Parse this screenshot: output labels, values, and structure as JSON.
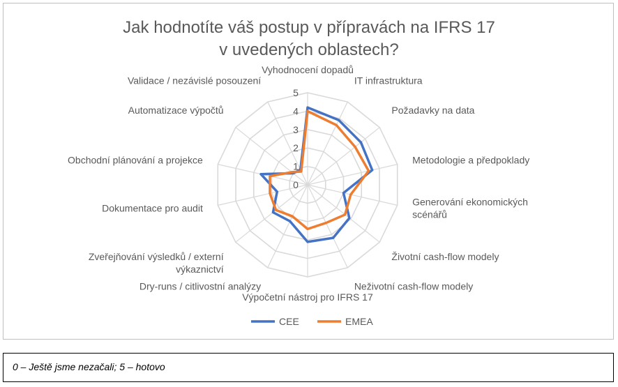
{
  "chart_data": {
    "type": "radar",
    "title_lines": [
      "Jak hodnotíte váš postup v přípravách na IFRS 17",
      "v uvedených oblastech?"
    ],
    "categories": [
      "Vyhodnocení dopadů",
      "IT infrastruktura",
      "Požadavky na data",
      "Metodologie a předpoklady",
      "Generování ekonomických scénářů",
      "Životní cash-flow modely",
      "Neživotní cash-flow modely",
      "Výpočetní nástroj pro IFRS 17",
      "Dry-runs / citlivostní analýzy",
      "Zveřejňování výsledků / externí výkaznictví",
      "Dokumentace pro audit",
      "Obchodní plánování a projekce",
      "Automatizace výpočtů",
      "Validace / nezávislé posouzení"
    ],
    "category_label_lines": [
      [
        "Vyhodnocení dopadů"
      ],
      [
        "IT infrastruktura"
      ],
      [
        "Požadavky na data"
      ],
      [
        "Metodologie a předpoklady"
      ],
      [
        "Generování ekonomických",
        "scénářů"
      ],
      [
        "Životní cash-flow modely"
      ],
      [
        "Neživotní cash-flow modely"
      ],
      [
        "Výpočetní nástroj pro IFRS 17"
      ],
      [
        "Dry-runs / citlivostní analýzy"
      ],
      [
        "Zveřejňování výsledků / externí",
        "výkaznictví"
      ],
      [
        "Dokumentace pro audit"
      ],
      [
        "Obchodní plánování a projekce"
      ],
      [
        "Automatizace výpočtů"
      ],
      [
        "Validace / nezávislé posouzení"
      ]
    ],
    "series": [
      {
        "name": "CEE",
        "color": "#4472c4",
        "values": [
          4.2,
          3.9,
          3.7,
          3.6,
          2.0,
          2.9,
          3.2,
          3.1,
          2.2,
          2.4,
          1.7,
          2.6,
          1.0,
          0.9
        ]
      },
      {
        "name": "EMEA",
        "color": "#ed7d31",
        "values": [
          4.0,
          3.6,
          3.3,
          3.4,
          2.4,
          2.6,
          2.3,
          2.4,
          1.9,
          2.2,
          2.1,
          2.1,
          1.1,
          0.8
        ]
      }
    ],
    "r_ticks": [
      "0",
      "1",
      "2",
      "3",
      "4",
      "5"
    ],
    "r_range": [
      0,
      5
    ],
    "grid": true,
    "legend_position": "bottom"
  },
  "footnote": "0 – Ještě jsme nezačali; 5 – hotovo"
}
